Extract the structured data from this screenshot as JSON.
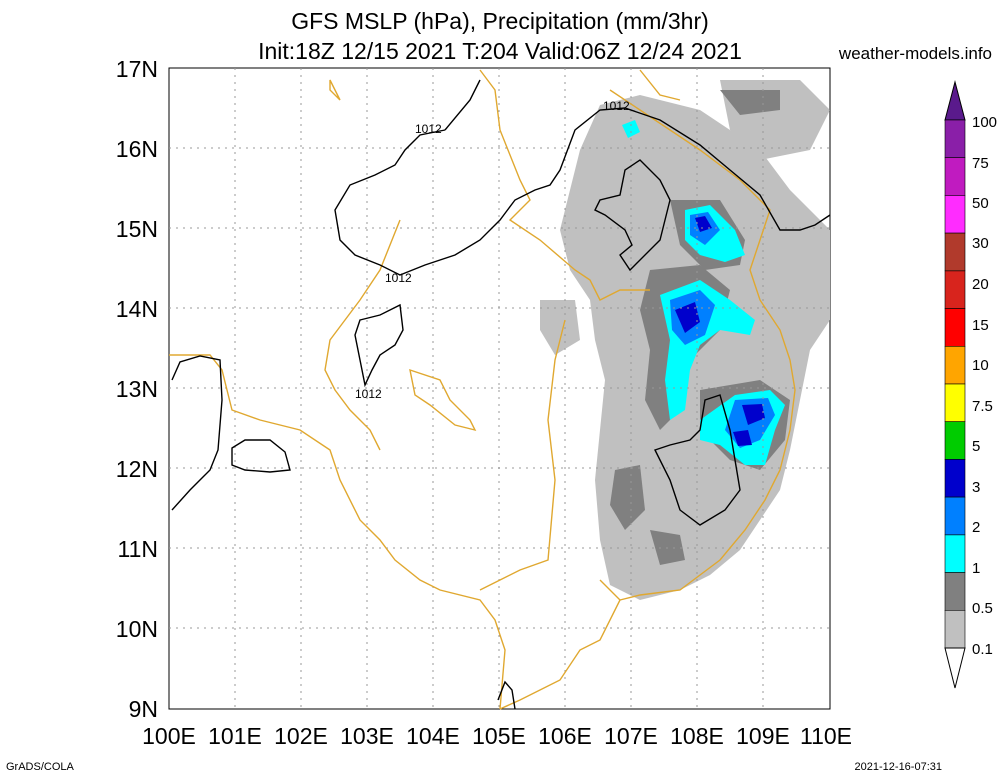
{
  "title": {
    "line1": "GFS MSLP (hPa), Precipitation (mm/3hr)",
    "line2": "Init:18Z 12/15 2021 T:204 Valid:06Z 12/24 2021"
  },
  "site": "weather-models.info",
  "footer": {
    "left": "GrADS/COLA",
    "right": "2021-12-16-07:31"
  },
  "map": {
    "lat_labels": [
      "17N",
      "16N",
      "15N",
      "14N",
      "13N",
      "12N",
      "11N",
      "10N",
      "9N"
    ],
    "lon_labels": [
      "100E",
      "101E",
      "102E",
      "103E",
      "104E",
      "105E",
      "106E",
      "107E",
      "108E",
      "109E",
      "110E"
    ],
    "isobar_label": "1012",
    "colors": {
      "coastline": "#e0a830",
      "isobar": "#000000",
      "grid": "#999999"
    }
  },
  "legend": {
    "labels": [
      "100",
      "75",
      "50",
      "30",
      "20",
      "15",
      "10",
      "7.5",
      "5",
      "3",
      "2",
      "1",
      "0.5",
      "0.1"
    ],
    "colors": [
      "#8a1fa8",
      "#c01bc0",
      "#ff2cff",
      "#b13a2c",
      "#d8241d",
      "#ff0000",
      "#ffa500",
      "#ffff00",
      "#00cc00",
      "#0000cc",
      "#0080ff",
      "#00ffff",
      "#808080",
      "#c0c0c0"
    ]
  }
}
